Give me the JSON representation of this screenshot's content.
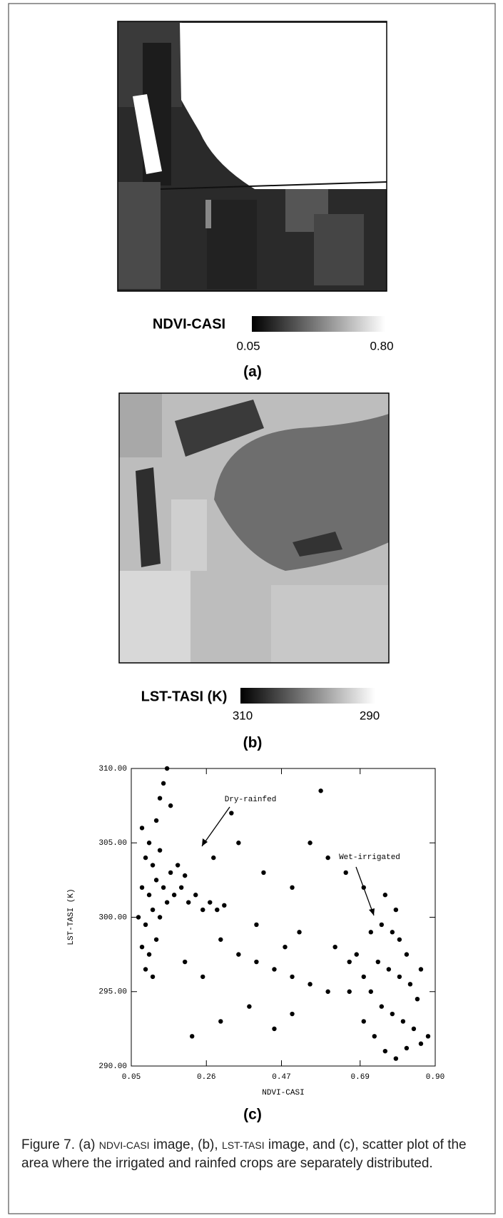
{
  "panel_a": {
    "colorbar_label": "NDVI-CASI",
    "colorbar_min": "0.05",
    "colorbar_max": "0.80",
    "tag": "(a)"
  },
  "panel_b": {
    "colorbar_label": "LST-TASI (K)",
    "colorbar_min": "310",
    "colorbar_max": "290",
    "tag": "(b)"
  },
  "chart_data": {
    "type": "scatter",
    "x_label": "NDVI-CASI",
    "y_label": "LST-TASI (K)",
    "xlim": [
      0.05,
      0.9
    ],
    "ylim": [
      290,
      310
    ],
    "xticks": [
      0.05,
      0.26,
      0.47,
      0.69,
      {
        "value": 0.9,
        "label": "0.90"
      }
    ],
    "yticks": [
      {
        "value": 290,
        "label": "290.00"
      },
      {
        "value": 295,
        "label": "295.00"
      },
      {
        "value": 300,
        "label": "300.00"
      },
      {
        "value": 305,
        "label": "305.00"
      },
      {
        "value": 310,
        "label": "310.00"
      }
    ],
    "color": "#000000",
    "annotations": [
      "Dry-rainfed",
      "Wet-irrigated"
    ],
    "x": [
      0.08,
      0.1,
      0.12,
      0.09,
      0.11,
      0.13,
      0.08,
      0.1,
      0.12,
      0.14,
      0.07,
      0.09,
      0.11,
      0.13,
      0.15,
      0.17,
      0.19,
      0.21,
      0.23,
      0.25,
      0.27,
      0.29,
      0.31,
      0.08,
      0.1,
      0.12,
      0.09,
      0.11,
      0.16,
      0.18,
      0.2,
      0.14,
      0.15,
      0.13,
      0.16,
      0.2,
      0.25,
      0.3,
      0.35,
      0.4,
      0.45,
      0.5,
      0.55,
      0.6,
      0.38,
      0.3,
      0.22,
      0.45,
      0.5,
      0.28,
      0.35,
      0.42,
      0.5,
      0.55,
      0.6,
      0.65,
      0.33,
      0.58,
      0.4,
      0.48,
      0.52,
      0.62,
      0.66,
      0.7,
      0.72,
      0.75,
      0.78,
      0.8,
      0.82,
      0.74,
      0.77,
      0.8,
      0.83,
      0.85,
      0.72,
      0.75,
      0.78,
      0.81,
      0.84,
      0.86,
      0.73,
      0.76,
      0.79,
      0.82,
      0.7,
      0.68,
      0.66,
      0.7,
      0.88,
      0.86,
      0.79,
      0.76
    ],
    "y": [
      306,
      305,
      306.5,
      304,
      303.5,
      304.5,
      302,
      301.5,
      302.5,
      302,
      300,
      299.5,
      300.5,
      300,
      301,
      301.5,
      302,
      301,
      301.5,
      300.5,
      301,
      300.5,
      300.8,
      298,
      297.5,
      298.5,
      296.5,
      296,
      303,
      303.5,
      302.8,
      309,
      310,
      308,
      307.5,
      297,
      296,
      298.5,
      297.5,
      297,
      296.5,
      296,
      295.5,
      295,
      294,
      293,
      292,
      292.5,
      293.5,
      304,
      305,
      303,
      302,
      305,
      304,
      303,
      307,
      308.5,
      299.5,
      298,
      299,
      298,
      297,
      302,
      299,
      299.5,
      299,
      298.5,
      297.5,
      297,
      296.5,
      296,
      295.5,
      294.5,
      295,
      294,
      293.5,
      293,
      292.5,
      291.5,
      292,
      291,
      290.5,
      291.2,
      296,
      297.5,
      295,
      293,
      292,
      296.5,
      300.5,
      301.5
    ]
  },
  "panel_c": {
    "tag": "(c)"
  },
  "caption": {
    "segments": [
      "Figure 7. (a) ",
      "NDVI-CASI",
      " image, (b), ",
      "LST-TASI",
      " image, and (c), scatter plot of the area where the irrigated and rainfed crops are separately distributed."
    ]
  }
}
